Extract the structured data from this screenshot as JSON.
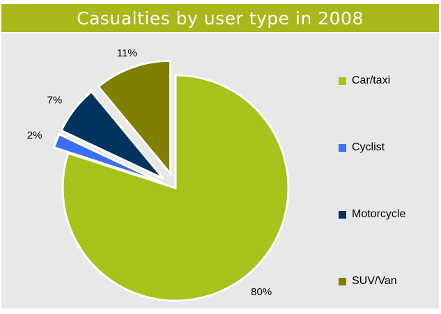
{
  "chart_data": {
    "type": "pie",
    "title": "Casualties by user type in 2008",
    "slices": [
      {
        "label": "Car/taxi",
        "value": 80,
        "value_label": "80%",
        "color": "#a9c11b",
        "exploded": false
      },
      {
        "label": "Cyclist",
        "value": 2,
        "value_label": "2%",
        "color": "#3b6ff5",
        "exploded": true
      },
      {
        "label": "Motorcycle",
        "value": 7,
        "value_label": "7%",
        "color": "#00335e",
        "exploded": true
      },
      {
        "label": "SUV/Van",
        "value": 11,
        "value_label": "11%",
        "color": "#808000",
        "exploded": true
      }
    ],
    "legend_position": "right"
  },
  "colors": {
    "title_bar": "#a9b71b",
    "plot_background": "#e8e8e8",
    "slice_border": "#ffffff"
  }
}
